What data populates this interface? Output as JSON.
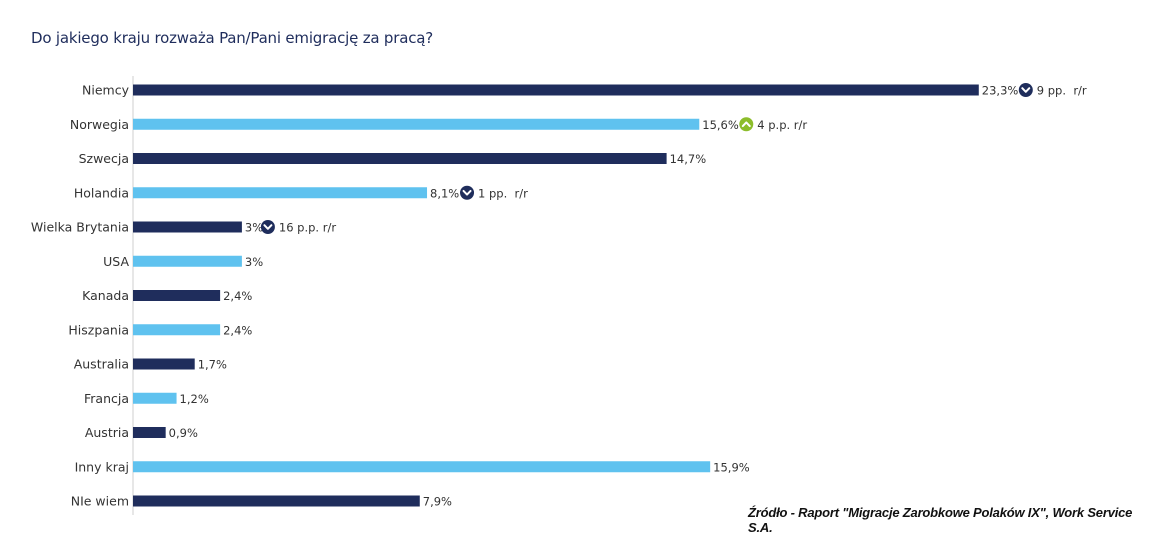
{
  "title": "Do jakiego kraju rozważa Pan/Pani emigrację za pracą?",
  "source": "Źródło - Raport \"Migracje Zarobkowe Polaków IX\", Work Service S.A.",
  "colors": {
    "dark": "#1f2d5c",
    "light": "#5fc2ef",
    "up": "#8cbd2b",
    "down": "#1f2d5c",
    "text": "#333333"
  },
  "chart_data": {
    "type": "bar",
    "orientation": "horizontal",
    "xlim": [
      0,
      25
    ],
    "grid": false,
    "categories": [
      "Niemcy",
      "Norwegia",
      "Szwecja",
      "Holandia",
      "Wielka Brytania",
      "USA",
      "Kanada",
      "Hiszpania",
      "Australia",
      "Francja",
      "Austria",
      "Inny kraj",
      "NIe wiem"
    ],
    "values": [
      23.3,
      15.6,
      14.7,
      8.1,
      3,
      3,
      2.4,
      2.4,
      1.7,
      1.2,
      0.9,
      15.9,
      7.9
    ],
    "value_labels": [
      "23,3%",
      "15,6%",
      "14,7%",
      "8,1%",
      "3%",
      "3%",
      "2,4%",
      "2,4%",
      "1,7%",
      "1,2%",
      "0,9%",
      "15,9%",
      "7,9%"
    ],
    "bar_colors": [
      "dark",
      "light",
      "dark",
      "light",
      "dark",
      "light",
      "dark",
      "light",
      "dark",
      "light",
      "dark",
      "light",
      "dark"
    ],
    "changes": [
      {
        "index": 0,
        "direction": "down",
        "label": "9 pp.  r/r"
      },
      {
        "index": 1,
        "direction": "up",
        "label": "4 p.p. r/r"
      },
      {
        "index": 3,
        "direction": "down",
        "label": "1 pp.  r/r"
      },
      {
        "index": 4,
        "direction": "down",
        "label": "16 p.p. r/r"
      }
    ]
  }
}
